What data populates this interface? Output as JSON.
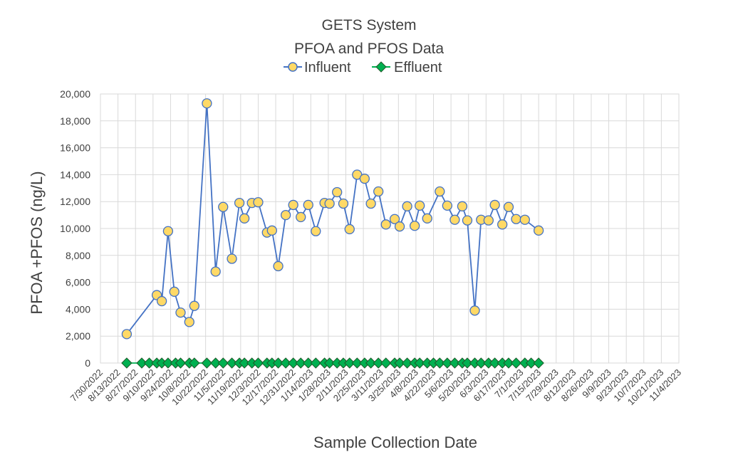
{
  "chart_data": {
    "type": "line",
    "title": "GETS System",
    "subtitle": "PFOA and PFOS Data",
    "xlabel": "Sample Collection Date",
    "ylabel": "PFOA +PFOS (ng/L)",
    "ylim": [
      0,
      20000
    ],
    "yticks": [
      0,
      2000,
      4000,
      6000,
      8000,
      10000,
      12000,
      14000,
      16000,
      18000,
      20000
    ],
    "ytick_labels": [
      "0",
      "2,000",
      "4,000",
      "6,000",
      "8,000",
      "10,000",
      "12,000",
      "14,000",
      "16,000",
      "18,000",
      "20,000"
    ],
    "xlim": [
      "2022-07-30",
      "2023-11-04"
    ],
    "xtick_labels": [
      "7/30/2022",
      "8/13/2022",
      "8/27/2022",
      "9/10/2022",
      "9/24/2022",
      "10/8/2022",
      "10/22/2022",
      "11/5/2022",
      "11/19/2022",
      "12/3/2022",
      "12/17/2022",
      "12/31/2022",
      "1/14/2023",
      "1/28/2023",
      "2/11/2023",
      "2/25/2023",
      "3/11/2023",
      "3/25/2023",
      "4/8/2023",
      "4/22/2023",
      "5/6/2023",
      "5/20/2023",
      "6/3/2023",
      "6/17/2023",
      "7/1/2023",
      "7/15/2023",
      "7/29/2023",
      "8/12/2023",
      "8/26/2023",
      "9/9/2023",
      "9/23/2023",
      "10/7/2023",
      "10/21/2023",
      "11/4/2023"
    ],
    "grid": true,
    "legend_position": "top",
    "series": [
      {
        "name": "Influent",
        "color": "#4472c4",
        "marker": "circle",
        "marker_fill": "#ffd966",
        "points": [
          [
            "2022-08-20",
            2150
          ],
          [
            "2022-09-13",
            5050
          ],
          [
            "2022-09-17",
            4600
          ],
          [
            "2022-09-22",
            9800
          ],
          [
            "2022-09-27",
            5300
          ],
          [
            "2022-10-02",
            3750
          ],
          [
            "2022-10-09",
            3050
          ],
          [
            "2022-10-13",
            4250
          ],
          [
            "2022-10-23",
            19300
          ],
          [
            "2022-10-30",
            6800
          ],
          [
            "2022-11-05",
            11600
          ],
          [
            "2022-11-12",
            7750
          ],
          [
            "2022-11-18",
            11900
          ],
          [
            "2022-11-22",
            10750
          ],
          [
            "2022-11-28",
            11900
          ],
          [
            "2022-12-03",
            11950
          ],
          [
            "2022-12-10",
            9700
          ],
          [
            "2022-12-14",
            9850
          ],
          [
            "2022-12-19",
            7200
          ],
          [
            "2022-12-25",
            11000
          ],
          [
            "2022-12-31",
            11750
          ],
          [
            "2023-01-06",
            10850
          ],
          [
            "2023-01-12",
            11750
          ],
          [
            "2023-01-18",
            9800
          ],
          [
            "2023-01-25",
            11900
          ],
          [
            "2023-01-29",
            11850
          ],
          [
            "2023-02-04",
            12700
          ],
          [
            "2023-02-09",
            11850
          ],
          [
            "2023-02-14",
            9950
          ],
          [
            "2023-02-20",
            14000
          ],
          [
            "2023-02-26",
            13700
          ],
          [
            "2023-03-03",
            11850
          ],
          [
            "2023-03-09",
            12750
          ],
          [
            "2023-03-15",
            10300
          ],
          [
            "2023-03-22",
            10700
          ],
          [
            "2023-03-26",
            10150
          ],
          [
            "2023-04-01",
            11650
          ],
          [
            "2023-04-07",
            10200
          ],
          [
            "2023-04-11",
            11700
          ],
          [
            "2023-04-17",
            10750
          ],
          [
            "2023-04-27",
            12750
          ],
          [
            "2023-05-03",
            11700
          ],
          [
            "2023-05-09",
            10650
          ],
          [
            "2023-05-15",
            11650
          ],
          [
            "2023-05-19",
            10600
          ],
          [
            "2023-05-25",
            3900
          ],
          [
            "2023-05-30",
            10650
          ],
          [
            "2023-06-05",
            10600
          ],
          [
            "2023-06-10",
            11750
          ],
          [
            "2023-06-16",
            10300
          ],
          [
            "2023-06-21",
            11600
          ],
          [
            "2023-06-27",
            10700
          ],
          [
            "2023-07-04",
            10650
          ],
          [
            "2023-07-15",
            9850
          ]
        ]
      },
      {
        "name": "Effluent",
        "color": "#00b050",
        "marker": "diamond",
        "marker_fill": "#00b050",
        "points": [
          [
            "2022-08-20",
            0
          ],
          [
            "2022-09-01",
            0
          ],
          [
            "2022-09-07",
            0
          ],
          [
            "2022-09-13",
            0
          ],
          [
            "2022-09-17",
            0
          ],
          [
            "2022-09-22",
            0
          ],
          [
            "2022-09-28",
            0
          ],
          [
            "2022-10-02",
            0
          ],
          [
            "2022-10-09",
            0
          ],
          [
            "2022-10-13",
            0
          ],
          [
            "2022-10-23",
            0
          ],
          [
            "2022-10-30",
            0
          ],
          [
            "2022-11-05",
            0
          ],
          [
            "2022-11-12",
            0
          ],
          [
            "2022-11-18",
            0
          ],
          [
            "2022-11-22",
            0
          ],
          [
            "2022-11-28",
            0
          ],
          [
            "2022-12-03",
            0
          ],
          [
            "2022-12-10",
            0
          ],
          [
            "2022-12-14",
            0
          ],
          [
            "2022-12-19",
            0
          ],
          [
            "2022-12-25",
            0
          ],
          [
            "2022-12-31",
            0
          ],
          [
            "2023-01-06",
            0
          ],
          [
            "2023-01-12",
            0
          ],
          [
            "2023-01-18",
            0
          ],
          [
            "2023-01-25",
            0
          ],
          [
            "2023-01-29",
            0
          ],
          [
            "2023-02-04",
            0
          ],
          [
            "2023-02-09",
            0
          ],
          [
            "2023-02-14",
            0
          ],
          [
            "2023-02-20",
            0
          ],
          [
            "2023-02-26",
            0
          ],
          [
            "2023-03-03",
            0
          ],
          [
            "2023-03-09",
            0
          ],
          [
            "2023-03-15",
            0
          ],
          [
            "2023-03-22",
            0
          ],
          [
            "2023-03-26",
            0
          ],
          [
            "2023-04-01",
            0
          ],
          [
            "2023-04-07",
            0
          ],
          [
            "2023-04-11",
            0
          ],
          [
            "2023-04-17",
            0
          ],
          [
            "2023-04-22",
            0
          ],
          [
            "2023-04-27",
            0
          ],
          [
            "2023-05-03",
            0
          ],
          [
            "2023-05-09",
            0
          ],
          [
            "2023-05-15",
            0
          ],
          [
            "2023-05-19",
            0
          ],
          [
            "2023-05-25",
            0
          ],
          [
            "2023-05-30",
            0
          ],
          [
            "2023-06-05",
            0
          ],
          [
            "2023-06-10",
            0
          ],
          [
            "2023-06-16",
            0
          ],
          [
            "2023-06-21",
            0
          ],
          [
            "2023-06-27",
            0
          ],
          [
            "2023-07-04",
            0
          ],
          [
            "2023-07-09",
            0
          ],
          [
            "2023-07-15",
            0
          ]
        ]
      }
    ]
  }
}
